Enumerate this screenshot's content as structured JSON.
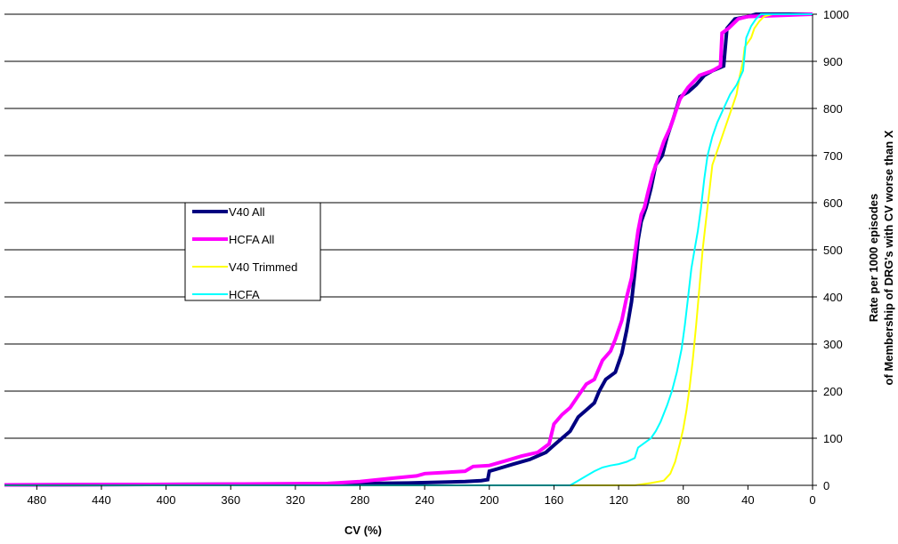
{
  "chart_data": {
    "type": "line",
    "title": "",
    "xlabel": "CV (%)",
    "ylabel_line1": "Rate per 1000 episodes",
    "ylabel_line2": "of Membership of DRG's with CV worse than X",
    "xlim": [
      500,
      0
    ],
    "ylim": [
      0,
      1000
    ],
    "x_reversed": true,
    "y_axis_side": "right",
    "x_ticks": [
      480,
      440,
      400,
      360,
      320,
      280,
      240,
      200,
      160,
      120,
      80,
      40,
      0
    ],
    "y_ticks": [
      0,
      100,
      200,
      300,
      400,
      500,
      600,
      700,
      800,
      900,
      1000
    ],
    "grid": "horizontal",
    "legend_position": "center-left",
    "series": [
      {
        "name": "V40 All",
        "color": "#000080",
        "width": 4,
        "points": [
          [
            500,
            1
          ],
          [
            390,
            2
          ],
          [
            300,
            3
          ],
          [
            250,
            5
          ],
          [
            215,
            8
          ],
          [
            205,
            10
          ],
          [
            201,
            12
          ],
          [
            200,
            30
          ],
          [
            195,
            35
          ],
          [
            185,
            45
          ],
          [
            175,
            55
          ],
          [
            165,
            70
          ],
          [
            160,
            85
          ],
          [
            155,
            100
          ],
          [
            150,
            115
          ],
          [
            145,
            145
          ],
          [
            140,
            160
          ],
          [
            135,
            175
          ],
          [
            132,
            200
          ],
          [
            128,
            225
          ],
          [
            122,
            240
          ],
          [
            118,
            280
          ],
          [
            115,
            330
          ],
          [
            112,
            390
          ],
          [
            110,
            450
          ],
          [
            108,
            520
          ],
          [
            106,
            560
          ],
          [
            103,
            590
          ],
          [
            100,
            630
          ],
          [
            97,
            680
          ],
          [
            93,
            700
          ],
          [
            90,
            740
          ],
          [
            86,
            780
          ],
          [
            82,
            825
          ],
          [
            77,
            835
          ],
          [
            72,
            850
          ],
          [
            67,
            870
          ],
          [
            62,
            880
          ],
          [
            55,
            890
          ],
          [
            53,
            970
          ],
          [
            48,
            990
          ],
          [
            40,
            995
          ],
          [
            35,
            1000
          ],
          [
            0,
            1000
          ]
        ]
      },
      {
        "name": "HCFA All",
        "color": "#ff00ff",
        "width": 4,
        "points": [
          [
            500,
            1
          ],
          [
            380,
            2
          ],
          [
            300,
            4
          ],
          [
            280,
            8
          ],
          [
            260,
            15
          ],
          [
            245,
            20
          ],
          [
            240,
            25
          ],
          [
            225,
            28
          ],
          [
            215,
            30
          ],
          [
            210,
            40
          ],
          [
            200,
            42
          ],
          [
            190,
            52
          ],
          [
            180,
            62
          ],
          [
            170,
            70
          ],
          [
            163,
            88
          ],
          [
            160,
            130
          ],
          [
            155,
            150
          ],
          [
            150,
            165
          ],
          [
            145,
            190
          ],
          [
            140,
            215
          ],
          [
            135,
            225
          ],
          [
            130,
            265
          ],
          [
            125,
            285
          ],
          [
            122,
            310
          ],
          [
            118,
            350
          ],
          [
            115,
            400
          ],
          [
            112,
            440
          ],
          [
            110,
            490
          ],
          [
            108,
            540
          ],
          [
            106,
            575
          ],
          [
            104,
            590
          ],
          [
            102,
            620
          ],
          [
            99,
            660
          ],
          [
            96,
            690
          ],
          [
            92,
            730
          ],
          [
            88,
            760
          ],
          [
            85,
            790
          ],
          [
            82,
            820
          ],
          [
            77,
            845
          ],
          [
            70,
            870
          ],
          [
            62,
            880
          ],
          [
            57,
            890
          ],
          [
            56,
            960
          ],
          [
            52,
            970
          ],
          [
            46,
            990
          ],
          [
            40,
            995
          ],
          [
            0,
            1000
          ]
        ]
      },
      {
        "name": "V40 Trimmed",
        "color": "#ffff00",
        "width": 2,
        "points": [
          [
            500,
            0
          ],
          [
            110,
            0
          ],
          [
            100,
            5
          ],
          [
            92,
            10
          ],
          [
            88,
            25
          ],
          [
            85,
            50
          ],
          [
            82,
            90
          ],
          [
            80,
            120
          ],
          [
            78,
            160
          ],
          [
            76,
            210
          ],
          [
            74,
            270
          ],
          [
            72,
            340
          ],
          [
            70,
            420
          ],
          [
            68,
            500
          ],
          [
            66,
            560
          ],
          [
            64,
            620
          ],
          [
            62,
            680
          ],
          [
            58,
            720
          ],
          [
            54,
            760
          ],
          [
            50,
            800
          ],
          [
            47,
            830
          ],
          [
            45,
            870
          ],
          [
            43,
            900
          ],
          [
            42,
            930
          ],
          [
            38,
            950
          ],
          [
            36,
            970
          ],
          [
            33,
            985
          ],
          [
            30,
            995
          ],
          [
            25,
            1000
          ],
          [
            0,
            1000
          ]
        ]
      },
      {
        "name": "HCFA",
        "color": "#00ffff",
        "width": 2,
        "points": [
          [
            500,
            0
          ],
          [
            150,
            0
          ],
          [
            145,
            10
          ],
          [
            140,
            20
          ],
          [
            135,
            30
          ],
          [
            130,
            38
          ],
          [
            125,
            42
          ],
          [
            120,
            45
          ],
          [
            115,
            50
          ],
          [
            110,
            58
          ],
          [
            108,
            80
          ],
          [
            104,
            90
          ],
          [
            100,
            100
          ],
          [
            97,
            115
          ],
          [
            94,
            135
          ],
          [
            90,
            170
          ],
          [
            87,
            200
          ],
          [
            84,
            240
          ],
          [
            81,
            290
          ],
          [
            79,
            340
          ],
          [
            77,
            400
          ],
          [
            75,
            460
          ],
          [
            73,
            500
          ],
          [
            71,
            540
          ],
          [
            69,
            590
          ],
          [
            67,
            650
          ],
          [
            65,
            700
          ],
          [
            62,
            740
          ],
          [
            59,
            770
          ],
          [
            55,
            800
          ],
          [
            51,
            830
          ],
          [
            47,
            850
          ],
          [
            43,
            880
          ],
          [
            41,
            950
          ],
          [
            38,
            975
          ],
          [
            35,
            990
          ],
          [
            32,
            1000
          ],
          [
            0,
            1000
          ]
        ]
      }
    ]
  }
}
